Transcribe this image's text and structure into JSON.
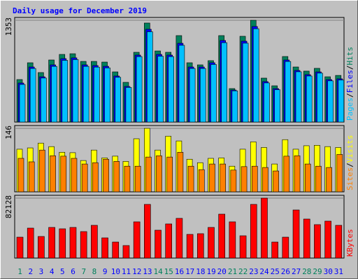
{
  "title": "Daily usage for December 2019",
  "legend_separator": "/",
  "chart_data": [
    {
      "type": "bar",
      "ylim": [
        0,
        1353
      ],
      "yticks": [
        1353
      ],
      "series": [
        {
          "name": "Hits",
          "color": "#00805c",
          "values": [
            565,
            788,
            658,
            825,
            899,
            908,
            806,
            806,
            797,
            667,
            528,
            927,
            1316,
            945,
            927,
            1149,
            788,
            760,
            816,
            1149,
            445,
            1140,
            1353,
            584,
            482,
            871,
            732,
            677,
            714,
            602,
            620
          ]
        },
        {
          "name": "Files",
          "color": "#0000ff",
          "values": [
            519,
            732,
            602,
            760,
            843,
            853,
            760,
            751,
            741,
            612,
            473,
            890,
            1233,
            899,
            890,
            1047,
            732,
            732,
            788,
            1084,
            426,
            1075,
            1270,
            538,
            445,
            825,
            686,
            630,
            667,
            565,
            575
          ]
        },
        {
          "name": "Pages",
          "color": "#00c0ff",
          "values": [
            500,
            712,
            585,
            740,
            820,
            830,
            740,
            730,
            720,
            595,
            460,
            870,
            1200,
            875,
            870,
            1020,
            712,
            712,
            765,
            1055,
            415,
            1048,
            1240,
            520,
            430,
            805,
            668,
            612,
            650,
            548,
            558
          ]
        }
      ]
    },
    {
      "type": "bar",
      "ylim": [
        0,
        146
      ],
      "yticks": [
        146
      ],
      "series": [
        {
          "name": "Visits",
          "color": "#ffff00",
          "values": [
            98,
            101,
            112,
            104,
            91,
            90,
            72,
            96,
            78,
            82,
            70,
            122,
            146,
            96,
            128,
            117,
            75,
            67,
            77,
            78,
            59,
            98,
            115,
            102,
            64,
            120,
            98,
            106,
            107,
            104,
            102
          ]
        },
        {
          "name": "Sites",
          "color": "#ff8000",
          "values": [
            77,
            69,
            96,
            83,
            82,
            77,
            64,
            67,
            75,
            70,
            59,
            59,
            80,
            83,
            80,
            91,
            59,
            51,
            64,
            64,
            50,
            58,
            59,
            56,
            48,
            82,
            83,
            64,
            59,
            56,
            86
          ]
        }
      ]
    },
    {
      "type": "bar",
      "ylim": [
        0,
        82128
      ],
      "yticks": [
        82128
      ],
      "categories": [
        "1",
        "2",
        "3",
        "4",
        "5",
        "6",
        "7",
        "8",
        "9",
        "10",
        "11",
        "12",
        "13",
        "14",
        "15",
        "16",
        "17",
        "18",
        "19",
        "20",
        "21",
        "22",
        "23",
        "24",
        "25",
        "26",
        "27",
        "28",
        "29",
        "30",
        "31"
      ],
      "category_colors": [
        "#00805c",
        "#0000ff",
        "#0000ff",
        "#0000ff",
        "#0000ff",
        "#0000ff",
        "#00805c",
        "#00805c",
        "#0000ff",
        "#0000ff",
        "#0000ff",
        "#0000ff",
        "#0000ff",
        "#00805c",
        "#00805c",
        "#0000ff",
        "#0000ff",
        "#0000ff",
        "#0000ff",
        "#0000ff",
        "#00805c",
        "#00805c",
        "#0000ff",
        "#0000ff",
        "#0000ff",
        "#0000ff",
        "#0000ff",
        "#00805c",
        "#00805c",
        "#0000ff",
        "#0000ff"
      ],
      "series": [
        {
          "name": "KBytes",
          "color": "#ff0000",
          "values": [
            28650,
            41065,
            29605,
            42020,
            40110,
            42020,
            36290,
            44885,
            27695,
            21965,
            17190,
            49660,
            73535,
            38200,
            46795,
            54435,
            32470,
            33425,
            42020,
            60165,
            49660,
            30560,
            73535,
            82128,
            21965,
            28650,
            65895,
            53480,
            45840,
            50615,
            44885
          ]
        }
      ]
    }
  ]
}
